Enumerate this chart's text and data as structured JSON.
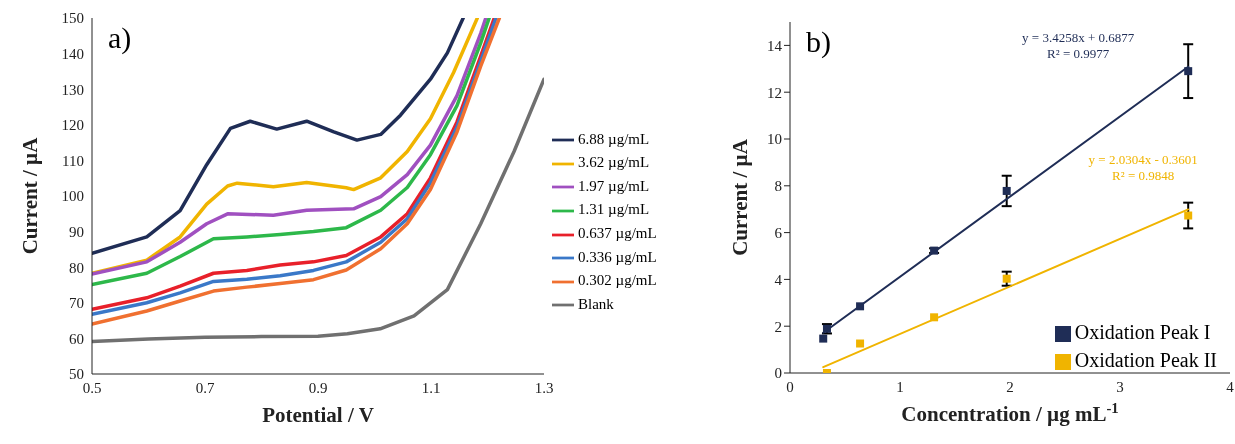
{
  "chart_data": [
    {
      "type": "line",
      "annotations": [
        "a)"
      ],
      "xlabel": "Potential / V",
      "ylabel": "Current / µA",
      "xlim": [
        0.5,
        1.3
      ],
      "xticks": [
        0.5,
        0.7,
        0.9,
        1.1,
        1.3
      ],
      "ylim": [
        50,
        150
      ],
      "yticks": [
        50,
        60,
        70,
        80,
        90,
        100,
        110,
        120,
        130,
        140,
        150
      ],
      "grid": false,
      "legend": "right",
      "marker": "none",
      "line_style": "solid",
      "series": [
        {
          "name": "6.88 µg/mL",
          "color": "#1f2d56",
          "x": [
            0.5,
            0.597,
            0.656,
            0.703,
            0.745,
            0.78,
            0.827,
            0.88,
            0.928,
            0.969,
            1.011,
            1.046,
            1.099,
            1.129,
            1.157
          ],
          "values": [
            83.9,
            88.5,
            95.9,
            108.8,
            119,
            121,
            118.8,
            121,
            118,
            115.7,
            117.3,
            122.7,
            132.8,
            140.2,
            150
          ]
        },
        {
          "name": "3.62 µg/mL",
          "color": "#f0b400",
          "x": [
            0.5,
            0.597,
            0.656,
            0.703,
            0.74,
            0.757,
            0.821,
            0.88,
            0.95,
            0.963,
            1.011,
            1.058,
            1.099,
            1.14,
            1.182
          ],
          "values": [
            78.3,
            82,
            88.5,
            97.7,
            102.8,
            103.6,
            102.6,
            103.8,
            102.3,
            101.8,
            105.1,
            112.5,
            121.7,
            134.7,
            150
          ]
        },
        {
          "name": "1.97 µg/mL",
          "color": "#a050c0",
          "x": [
            0.5,
            0.597,
            0.656,
            0.703,
            0.74,
            0.821,
            0.88,
            0.963,
            1.011,
            1.058,
            1.099,
            1.146,
            1.188,
            1.197
          ],
          "values": [
            78.1,
            81.5,
            87,
            92.2,
            95,
            94.6,
            96,
            96.4,
            99.8,
            106,
            114.3,
            128.2,
            145.7,
            150
          ]
        },
        {
          "name": "1.31 µg/mL",
          "color": "#2db84a",
          "x": [
            0.5,
            0.597,
            0.656,
            0.715,
            0.774,
            0.833,
            0.892,
            0.95,
            1.011,
            1.058,
            1.099,
            1.146,
            1.188,
            1.203
          ],
          "values": [
            75.1,
            78.3,
            83,
            88,
            88.5,
            89.2,
            90,
            91.1,
            96,
            102.4,
            111.6,
            125.4,
            143,
            150
          ]
        },
        {
          "name": "0.637 µg/mL",
          "color": "#e8202a",
          "x": [
            0.5,
            0.597,
            0.656,
            0.715,
            0.774,
            0.833,
            0.892,
            0.95,
            1.011,
            1.058,
            1.099,
            1.146,
            1.188,
            1.212
          ],
          "values": [
            68.2,
            71.4,
            74.7,
            78.3,
            79.1,
            80.6,
            81.5,
            83.3,
            88.5,
            95,
            105.1,
            120.8,
            139.3,
            150
          ]
        },
        {
          "name": "0.336 µg/mL",
          "color": "#3a78c8",
          "x": [
            0.5,
            0.597,
            0.656,
            0.715,
            0.774,
            0.833,
            0.892,
            0.95,
            1.011,
            1.058,
            1.099,
            1.146,
            1.188,
            1.215
          ],
          "values": [
            66.8,
            70,
            72.8,
            76,
            76.6,
            77.6,
            79.1,
            81.5,
            87,
            93.6,
            103.7,
            119.4,
            137.9,
            150
          ]
        },
        {
          "name": "0.302 µg/mL",
          "color": "#f07030",
          "x": [
            0.5,
            0.597,
            0.656,
            0.715,
            0.774,
            0.833,
            0.892,
            0.95,
            1.011,
            1.058,
            1.099,
            1.146,
            1.188,
            1.221
          ],
          "values": [
            64,
            67.7,
            70.5,
            73.3,
            74.4,
            75.4,
            76.5,
            79.2,
            85.2,
            92.2,
            101.8,
            118,
            136.5,
            150
          ]
        },
        {
          "name": "Blank",
          "color": "#707070",
          "x": [
            0.5,
            0.6,
            0.7,
            0.8,
            0.9,
            0.952,
            1.01,
            1.07,
            1.129,
            1.188,
            1.247,
            1.3
          ],
          "values": [
            59.1,
            59.8,
            60.3,
            60.5,
            60.6,
            61.3,
            62.7,
            66.3,
            73.7,
            92.2,
            112.5,
            132.8
          ]
        }
      ]
    },
    {
      "type": "scatter",
      "annotations": [
        "b)",
        "y = 3.4258x + 0.6877\nR² = 0.9977",
        "y = 2.0304x - 0.3601\nR² = 0.9848"
      ],
      "xlabel": "Concentration / µg mL$^{-1}$",
      "ylabel": "Current / µA",
      "xlim": [
        0,
        4
      ],
      "xticks": [
        0,
        1,
        2,
        3,
        4
      ],
      "ylim": [
        0,
        15
      ],
      "yticks": [
        0,
        2,
        4,
        6,
        8,
        10,
        12,
        14
      ],
      "grid": false,
      "legend": "bottom right",
      "marker": "square",
      "series": [
        {
          "name": "Oxidation Peak I",
          "color": "#1f2d56",
          "x": [
            0.302,
            0.336,
            0.637,
            1.31,
            1.97,
            3.62
          ],
          "values": [
            1.47,
            1.89,
            2.85,
            5.23,
            7.78,
            12.9
          ],
          "errors": [
            null,
            0.2,
            null,
            0.1,
            0.65,
            1.15
          ]
        },
        {
          "name": "Oxidation Peak II",
          "color": "#f0b400",
          "x": [
            0.336,
            0.637,
            1.31,
            1.97,
            3.62
          ],
          "values": [
            0,
            1.26,
            2.38,
            4.03,
            6.73
          ],
          "errors": [
            null,
            null,
            null,
            0.3,
            0.55
          ]
        },
        {
          "type": "line",
          "color": "#1f2d56",
          "x": [
            0.302,
            3.62
          ],
          "values": [
            1.72,
            13.09
          ],
          "marker": "none"
        },
        {
          "type": "line",
          "color": "#f0b400",
          "x": [
            0.302,
            3.62
          ],
          "values": [
            0.25,
            6.99
          ],
          "marker": "none"
        }
      ]
    }
  ]
}
